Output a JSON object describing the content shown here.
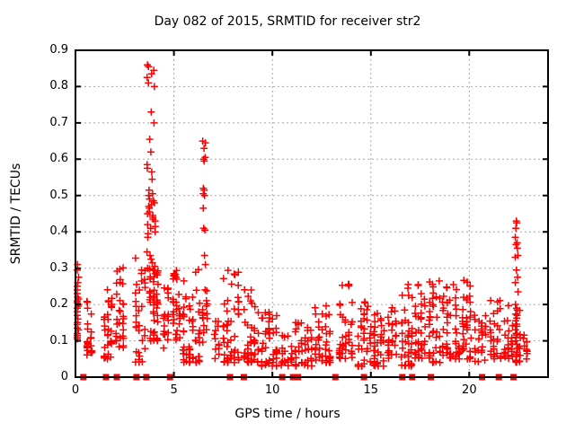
{
  "chart_data": {
    "type": "scatter",
    "title": "Day 082 of 2015, SRMTID for receiver str2",
    "xlabel": "GPS time / hours",
    "ylabel": "SRMTID / TECUs",
    "xlim": [
      0,
      24
    ],
    "ylim": [
      0,
      0.9
    ],
    "xticks": [
      0,
      5,
      10,
      15,
      20
    ],
    "xtick_labels": [
      "0",
      "5",
      "10",
      "15",
      "20"
    ],
    "yticks": [
      0,
      0.1,
      0.2,
      0.3,
      0.4,
      0.5,
      0.6,
      0.7,
      0.8,
      0.9
    ],
    "ytick_labels": [
      "0",
      "0.1",
      "0.2",
      "0.3",
      "0.4",
      "0.5",
      "0.6",
      "0.7",
      "0.8",
      "0.9"
    ],
    "grid": true,
    "legend": "none",
    "marker_color": "#ff0000",
    "grid_color": "#a6a6a6",
    "border_color": "#000000",
    "series": [
      {
        "name": "srmtid-plus-markers",
        "style": "plus",
        "columns": [
          {
            "x": 0.08,
            "spread": 0.22,
            "values": [
              0.31,
              0.295,
              0.275,
              0.26,
              0.25,
              0.24,
              0.23,
              0.22,
              0.215,
              0.21,
              0.205,
              0.2,
              0.195,
              0.19,
              0.18,
              0.17,
              0.16,
              0.15,
              0.145,
              0.135,
              0.13,
              0.12,
              0.115,
              0.11,
              0.105
            ]
          },
          {
            "x": 3.85,
            "spread": 0.45,
            "values": [
              0.86,
              0.855,
              0.845,
              0.835,
              0.825,
              0.81,
              0.8,
              0.73,
              0.7,
              0.655,
              0.62,
              0.585,
              0.575,
              0.565,
              0.545,
              0.515,
              0.505,
              0.5,
              0.49,
              0.485,
              0.48,
              0.475,
              0.47,
              0.465,
              0.455,
              0.45,
              0.445,
              0.44,
              0.435,
              0.43,
              0.42,
              0.415,
              0.41,
              0.4,
              0.395,
              0.385,
              0.345,
              0.335,
              0.325,
              0.315,
              0.305,
              0.3,
              0.295,
              0.285
            ]
          },
          {
            "x": 5.03,
            "spread": 0.14,
            "values": [
              0.285,
              0.282,
              0.28,
              0.278,
              0.283
            ]
          },
          {
            "x": 6.52,
            "spread": 0.16,
            "values": [
              0.65,
              0.645,
              0.63,
              0.605,
              0.6,
              0.595,
              0.52,
              0.515,
              0.505,
              0.5,
              0.465,
              0.41,
              0.405,
              0.335,
              0.31,
              0.24
            ]
          },
          {
            "x": 22.4,
            "spread": 0.16,
            "values": [
              0.43,
              0.425,
              0.41,
              0.385,
              0.37,
              0.365,
              0.355,
              0.335,
              0.33,
              0.295,
              0.275,
              0.26,
              0.235,
              0.2,
              0.185,
              0.17,
              0.155,
              0.14,
              0.13,
              0.12,
              0.11,
              0.1,
              0.09,
              0.08
            ]
          }
        ],
        "clusters": [
          [
            0.5,
            0.9,
            25,
            0.06,
            0.21,
            1.6
          ],
          [
            1.4,
            1.9,
            30,
            0.05,
            0.25,
            1.4
          ],
          [
            2.0,
            2.5,
            30,
            0.07,
            0.31,
            1.6
          ],
          [
            3.0,
            3.6,
            35,
            0.04,
            0.33,
            1.6
          ],
          [
            3.7,
            4.25,
            45,
            0.1,
            0.3,
            1.2
          ],
          [
            4.4,
            4.8,
            18,
            0.08,
            0.25,
            1.3
          ],
          [
            4.9,
            5.35,
            25,
            0.1,
            0.3,
            1.3
          ],
          [
            5.4,
            6.35,
            55,
            0.04,
            0.31,
            1.9
          ],
          [
            6.4,
            6.75,
            15,
            0.08,
            0.24,
            1.3
          ],
          [
            7.0,
            7.35,
            12,
            0.05,
            0.16,
            1.5
          ],
          [
            7.45,
            8.35,
            50,
            0.04,
            0.3,
            2.0
          ],
          [
            8.5,
            9.35,
            45,
            0.04,
            0.25,
            1.9
          ],
          [
            9.4,
            10.3,
            45,
            0.03,
            0.18,
            1.6
          ],
          [
            10.4,
            11.05,
            20,
            0.03,
            0.12,
            1.4
          ],
          [
            11.1,
            12.05,
            40,
            0.03,
            0.16,
            1.5
          ],
          [
            12.1,
            13.0,
            45,
            0.04,
            0.2,
            1.7
          ],
          [
            13.35,
            14.1,
            40,
            0.05,
            0.26,
            1.8
          ],
          [
            14.3,
            15.05,
            35,
            0.03,
            0.21,
            1.8
          ],
          [
            15.1,
            15.75,
            35,
            0.03,
            0.18,
            1.7
          ],
          [
            15.8,
            16.35,
            25,
            0.04,
            0.2,
            1.7
          ],
          [
            16.5,
            17.15,
            40,
            0.03,
            0.26,
            1.8
          ],
          [
            17.2,
            17.8,
            35,
            0.05,
            0.26,
            1.7
          ],
          [
            17.9,
            18.75,
            45,
            0.04,
            0.27,
            1.8
          ],
          [
            18.8,
            19.55,
            40,
            0.05,
            0.26,
            1.7
          ],
          [
            19.6,
            20.15,
            35,
            0.05,
            0.27,
            1.7
          ],
          [
            20.2,
            20.9,
            25,
            0.04,
            0.18,
            1.5
          ],
          [
            21.0,
            21.65,
            30,
            0.05,
            0.22,
            1.6
          ],
          [
            21.7,
            22.25,
            25,
            0.05,
            0.2,
            1.5
          ],
          [
            22.3,
            22.65,
            22,
            0.04,
            0.19,
            1.4
          ],
          [
            22.7,
            23.0,
            10,
            0.05,
            0.14,
            1.4
          ]
        ]
      },
      {
        "name": "zero-value-square-markers",
        "style": "filled-square",
        "y": 0,
        "x": [
          0.4,
          1.55,
          2.1,
          3.1,
          3.6,
          4.8,
          7.85,
          8.55,
          10.5,
          11.05,
          11.3,
          13.2,
          14.65,
          16.6,
          17.1,
          18.05,
          20.65,
          21.5,
          22.25
        ]
      }
    ]
  }
}
